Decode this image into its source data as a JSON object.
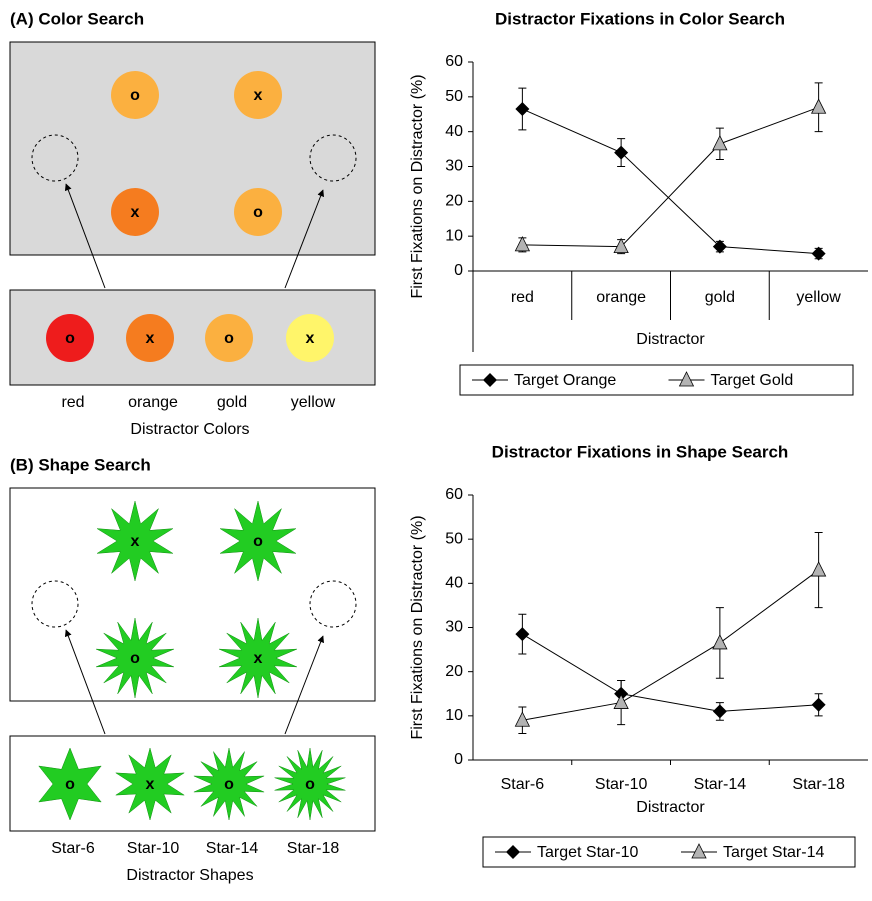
{
  "panels": [
    {
      "title": "(A) Color Search",
      "shape": "circle",
      "box_fill": "#d9d9d9",
      "display_items": [
        {
          "color": "#fbb040",
          "letter": "o"
        },
        {
          "color": "#fbb040",
          "letter": "x"
        },
        {
          "color": "#f57c1f",
          "letter": "x"
        },
        {
          "color": "#fbb040",
          "letter": "o"
        }
      ],
      "key_items": [
        {
          "color": "#ee1c1c",
          "letter": "o"
        },
        {
          "color": "#f57c1f",
          "letter": "x"
        },
        {
          "color": "#fbb040",
          "letter": "o"
        },
        {
          "color": "#fff56a",
          "letter": "x"
        }
      ],
      "item_labels": [
        "red",
        "orange",
        "gold",
        "yellow"
      ],
      "caption": "Distractor Colors"
    },
    {
      "title": "(B) Shape Search",
      "shape": "star",
      "box_fill": "#ffffff",
      "star_color": "#22cc22",
      "display_items": [
        {
          "points": 10,
          "letter": "x"
        },
        {
          "points": 10,
          "letter": "o"
        },
        {
          "points": 14,
          "letter": "o"
        },
        {
          "points": 14,
          "letter": "x"
        }
      ],
      "key_items": [
        {
          "points": 6,
          "letter": "o"
        },
        {
          "points": 10,
          "letter": "x"
        },
        {
          "points": 14,
          "letter": "o"
        },
        {
          "points": 18,
          "letter": "o"
        }
      ],
      "item_labels": [
        "Star-6",
        "Star-10",
        "Star-14",
        "Star-18"
      ],
      "caption": "Distractor Shapes"
    }
  ],
  "chart_data": [
    {
      "type": "line",
      "title": "Distractor Fixations in Color Search",
      "x_label": "Distractor",
      "y_label": "First Fixations on Distractor (%)",
      "categories": [
        "red",
        "orange",
        "gold",
        "yellow"
      ],
      "ylim": [
        0,
        60
      ],
      "yticks": [
        0,
        10,
        20,
        30,
        40,
        50,
        60
      ],
      "series": [
        {
          "name": "Target Orange",
          "color": "#000000",
          "marker": "diamond",
          "values": [
            46.5,
            34,
            7,
            5
          ],
          "errors": [
            6,
            4,
            1.5,
            1.5
          ]
        },
        {
          "name": "Target Gold",
          "color": "#b3b3b3",
          "marker": "triangle",
          "values": [
            7.5,
            7,
            36.5,
            47
          ],
          "errors": [
            2,
            2,
            4.5,
            7
          ]
        }
      ]
    },
    {
      "type": "line",
      "title": "Distractor Fixations in Shape Search",
      "x_label": "Distractor",
      "y_label": "First Fixations on Distractor (%)",
      "categories": [
        "Star-6",
        "Star-10",
        "Star-14",
        "Star-18"
      ],
      "ylim": [
        0,
        60
      ],
      "yticks": [
        0,
        10,
        20,
        30,
        40,
        50,
        60
      ],
      "series": [
        {
          "name": "Target Star-10",
          "color": "#000000",
          "marker": "diamond",
          "values": [
            28.5,
            15,
            11,
            12.5
          ],
          "errors": [
            4.5,
            3,
            2,
            2.5
          ]
        },
        {
          "name": "Target Star-14",
          "color": "#b3b3b3",
          "marker": "triangle",
          "values": [
            9,
            13,
            26.5,
            43
          ],
          "errors": [
            3,
            5,
            8,
            8.5
          ]
        }
      ]
    }
  ]
}
